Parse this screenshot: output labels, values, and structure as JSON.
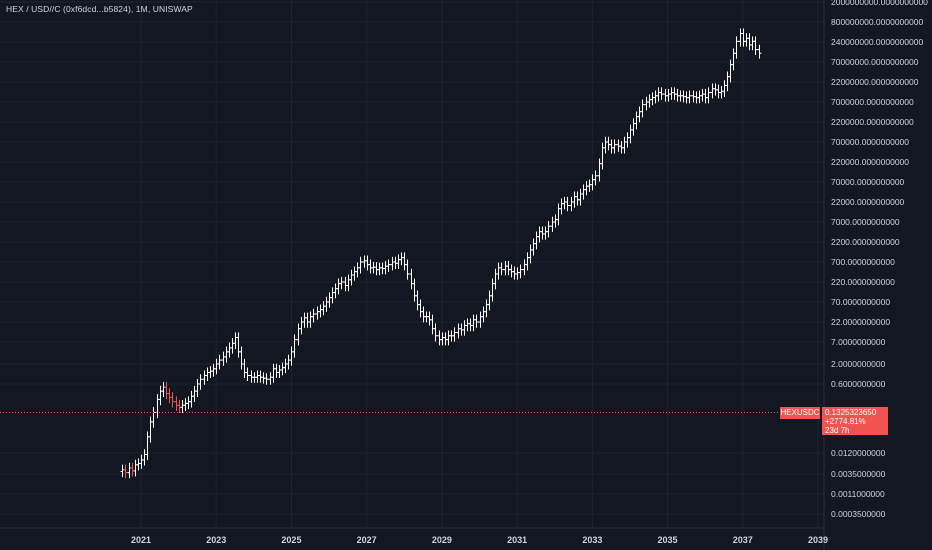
{
  "title": "HEX / USD//C (0xf6dcd...b5824), 1M, UNISWAP",
  "colors": {
    "background": "#131722",
    "grid": "#1f2331",
    "axis_text": "#d1d4dc",
    "up": "#ffffff",
    "down": "#f05350",
    "price_line": "#f05350"
  },
  "last_price": {
    "symbol": "HEXUSDC",
    "price": "0.1325323650",
    "change": "+2774.81%",
    "countdown": "23d 7h",
    "value": 0.132532365
  },
  "chart_data": {
    "type": "ohlc",
    "title": "HEX / USD//C (0xf6dcd...b5824), 1M, UNISWAP",
    "x_axis": {
      "labels": [
        "2021",
        "2023",
        "2025",
        "2027",
        "2029",
        "2031",
        "2033",
        "2035",
        "2037",
        "2039"
      ]
    },
    "y_axis": {
      "scale": "log",
      "ticks": [
        "2000000000.0000000000",
        "800000000.0000000000",
        "240000000.0000000000",
        "70000000.0000000000",
        "22000000.0000000000",
        "7000000.0000000000",
        "2200000.0000000000",
        "700000.0000000000",
        "220000.0000000000",
        "70000.0000000000",
        "22000.0000000000",
        "7000.0000000000",
        "2200.0000000000",
        "700.0000000000",
        "220.0000000000",
        "70.0000000000",
        "22.0000000000",
        "7.0000000000",
        "2.0000000000",
        "0.6000000000",
        "0.0120000000",
        "0.0035000000",
        "0.0011000000",
        "0.0003500000"
      ]
    },
    "grid": true,
    "projected_bars": [
      [
        2020.5,
        0.0045
      ],
      [
        2020.58,
        0.0038
      ],
      [
        2020.67,
        0.005
      ],
      [
        2020.75,
        0.0042
      ],
      [
        2020.83,
        0.006
      ],
      [
        2020.92,
        0.0065
      ],
      [
        2021.0,
        0.008
      ],
      [
        2021.08,
        0.011
      ],
      [
        2021.17,
        0.03
      ],
      [
        2021.25,
        0.07
      ],
      [
        2021.33,
        0.12
      ],
      [
        2021.42,
        0.25
      ],
      [
        2021.5,
        0.4
      ],
      [
        2021.58,
        0.5
      ],
      [
        2021.67,
        0.35
      ],
      [
        2021.75,
        0.28
      ],
      [
        2021.83,
        0.22
      ],
      [
        2021.92,
        0.18
      ],
      [
        2022.0,
        0.16
      ],
      [
        2022.08,
        0.18
      ],
      [
        2022.17,
        0.2
      ],
      [
        2022.25,
        0.22
      ],
      [
        2022.33,
        0.3
      ],
      [
        2022.42,
        0.4
      ],
      [
        2022.5,
        0.6
      ],
      [
        2022.58,
        0.8
      ],
      [
        2022.67,
        1.0
      ],
      [
        2022.75,
        1.2
      ],
      [
        2022.83,
        1.3
      ],
      [
        2022.92,
        1.5
      ],
      [
        2023.0,
        2.0
      ],
      [
        2023.08,
        2.5
      ],
      [
        2023.17,
        3.0
      ],
      [
        2023.25,
        4.0
      ],
      [
        2023.33,
        5.0
      ],
      [
        2023.42,
        6.5
      ],
      [
        2023.5,
        9.0
      ],
      [
        2023.58,
        4.0
      ],
      [
        2023.67,
        2.0
      ],
      [
        2023.75,
        1.2
      ],
      [
        2023.83,
        1.0
      ],
      [
        2023.92,
        0.9
      ],
      [
        2024.0,
        0.9
      ],
      [
        2024.08,
        1.0
      ],
      [
        2024.17,
        0.9
      ],
      [
        2024.25,
        0.85
      ],
      [
        2024.33,
        0.8
      ],
      [
        2024.42,
        0.9
      ],
      [
        2024.5,
        1.5
      ],
      [
        2024.58,
        1.2
      ],
      [
        2024.67,
        1.4
      ],
      [
        2024.75,
        1.6
      ],
      [
        2024.83,
        2.0
      ],
      [
        2024.92,
        2.5
      ],
      [
        2025.0,
        4.0
      ],
      [
        2025.08,
        8.0
      ],
      [
        2025.17,
        15
      ],
      [
        2025.25,
        22
      ],
      [
        2025.33,
        28
      ],
      [
        2025.42,
        22
      ],
      [
        2025.5,
        30
      ],
      [
        2025.58,
        35
      ],
      [
        2025.67,
        40
      ],
      [
        2025.75,
        45
      ],
      [
        2025.83,
        55
      ],
      [
        2025.92,
        70
      ],
      [
        2026.0,
        90
      ],
      [
        2026.08,
        120
      ],
      [
        2026.17,
        150
      ],
      [
        2026.25,
        200
      ],
      [
        2026.33,
        220
      ],
      [
        2026.42,
        180
      ],
      [
        2026.5,
        250
      ],
      [
        2026.58,
        330
      ],
      [
        2026.67,
        400
      ],
      [
        2026.75,
        500
      ],
      [
        2026.83,
        700
      ],
      [
        2026.92,
        750
      ],
      [
        2027.0,
        600
      ],
      [
        2027.08,
        500
      ],
      [
        2027.17,
        520
      ],
      [
        2027.25,
        450
      ],
      [
        2027.33,
        500
      ],
      [
        2027.42,
        480
      ],
      [
        2027.5,
        550
      ],
      [
        2027.58,
        600
      ],
      [
        2027.67,
        700
      ],
      [
        2027.75,
        650
      ],
      [
        2027.83,
        800
      ],
      [
        2027.92,
        900
      ],
      [
        2028.0,
        600
      ],
      [
        2028.08,
        350
      ],
      [
        2028.17,
        200
      ],
      [
        2028.25,
        100
      ],
      [
        2028.33,
        60
      ],
      [
        2028.42,
        40
      ],
      [
        2028.5,
        30
      ],
      [
        2028.58,
        30
      ],
      [
        2028.67,
        25
      ],
      [
        2028.75,
        15
      ],
      [
        2028.83,
        10
      ],
      [
        2028.92,
        8
      ],
      [
        2029.0,
        9
      ],
      [
        2029.08,
        8
      ],
      [
        2029.17,
        10
      ],
      [
        2029.25,
        10
      ],
      [
        2029.33,
        12
      ],
      [
        2029.42,
        15
      ],
      [
        2029.5,
        14
      ],
      [
        2029.58,
        18
      ],
      [
        2029.67,
        20
      ],
      [
        2029.75,
        18
      ],
      [
        2029.83,
        25
      ],
      [
        2029.92,
        22
      ],
      [
        2030.0,
        30
      ],
      [
        2030.08,
        40
      ],
      [
        2030.17,
        60
      ],
      [
        2030.25,
        100
      ],
      [
        2030.33,
        200
      ],
      [
        2030.42,
        350
      ],
      [
        2030.5,
        500
      ],
      [
        2030.58,
        450
      ],
      [
        2030.67,
        550
      ],
      [
        2030.75,
        450
      ],
      [
        2030.83,
        400
      ],
      [
        2030.92,
        350
      ],
      [
        2031.0,
        380
      ],
      [
        2031.08,
        450
      ],
      [
        2031.17,
        600
      ],
      [
        2031.25,
        900
      ],
      [
        2031.33,
        1400
      ],
      [
        2031.42,
        2000
      ],
      [
        2031.5,
        3000
      ],
      [
        2031.58,
        4000
      ],
      [
        2031.67,
        3500
      ],
      [
        2031.75,
        4000
      ],
      [
        2031.83,
        5500
      ],
      [
        2031.92,
        7000
      ],
      [
        2032.0,
        8000
      ],
      [
        2032.08,
        15000
      ],
      [
        2032.17,
        20000
      ],
      [
        2032.25,
        22000
      ],
      [
        2032.33,
        18000
      ],
      [
        2032.42,
        22000
      ],
      [
        2032.5,
        30000
      ],
      [
        2032.58,
        25000
      ],
      [
        2032.67,
        35000
      ],
      [
        2032.75,
        45000
      ],
      [
        2032.83,
        55000
      ],
      [
        2032.92,
        60000
      ],
      [
        2033.0,
        80000
      ],
      [
        2033.08,
        100000
      ],
      [
        2033.17,
        200000
      ],
      [
        2033.25,
        500000
      ],
      [
        2033.33,
        700000
      ],
      [
        2033.42,
        600000
      ],
      [
        2033.5,
        500000
      ],
      [
        2033.58,
        600000
      ],
      [
        2033.67,
        550000
      ],
      [
        2033.75,
        500000
      ],
      [
        2033.83,
        700000
      ],
      [
        2033.92,
        900000
      ],
      [
        2034.0,
        1400000
      ],
      [
        2034.08,
        2000000
      ],
      [
        2034.17,
        3000000
      ],
      [
        2034.25,
        4000000
      ],
      [
        2034.33,
        6000000
      ],
      [
        2034.42,
        7000000
      ],
      [
        2034.5,
        8000000
      ],
      [
        2034.58,
        9000000
      ],
      [
        2034.67,
        10000000
      ],
      [
        2034.75,
        12000000
      ],
      [
        2034.83,
        11000000
      ],
      [
        2034.92,
        10000000
      ],
      [
        2035.0,
        11000000
      ],
      [
        2035.08,
        12000000
      ],
      [
        2035.17,
        11000000
      ],
      [
        2035.25,
        10000000
      ],
      [
        2035.33,
        10000000
      ],
      [
        2035.42,
        9500000
      ],
      [
        2035.5,
        9000000
      ],
      [
        2035.58,
        10000000
      ],
      [
        2035.67,
        9500000
      ],
      [
        2035.75,
        9000000
      ],
      [
        2035.83,
        10000000
      ],
      [
        2035.92,
        11000000
      ],
      [
        2036.0,
        9000000
      ],
      [
        2036.08,
        12000000
      ],
      [
        2036.17,
        15000000
      ],
      [
        2036.25,
        14000000
      ],
      [
        2036.33,
        12000000
      ],
      [
        2036.42,
        13000000
      ],
      [
        2036.5,
        18000000
      ],
      [
        2036.58,
        30000000
      ],
      [
        2036.67,
        60000000
      ],
      [
        2036.75,
        120000000
      ],
      [
        2036.83,
        250000000
      ],
      [
        2036.92,
        400000000
      ],
      [
        2037.0,
        250000000
      ],
      [
        2037.08,
        300000000
      ],
      [
        2037.17,
        200000000
      ],
      [
        2037.25,
        250000000
      ],
      [
        2037.33,
        150000000
      ],
      [
        2037.42,
        120000000
      ]
    ]
  }
}
